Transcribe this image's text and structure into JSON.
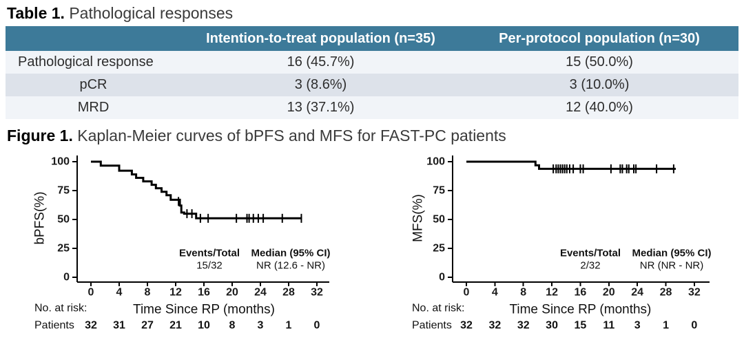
{
  "page": {
    "background": "#ffffff"
  },
  "table": {
    "title_prefix": "Table 1.",
    "title_text": " Pathological responses",
    "header": {
      "col_itt": "Intention-to-treat population (n=35)",
      "col_pp": "Per-protocol population (n=30)",
      "bg_color": "#3D7A99",
      "text_color": "#FFFFFF"
    },
    "row_bg": "#F1F4F8",
    "row_alt_bg": "#DDE2EA",
    "rows": [
      {
        "label": "Pathological response",
        "itt": "16 (45.7%)",
        "pp": "15 (50.0%)"
      },
      {
        "label": "pCR",
        "itt": "3 (8.6%)",
        "pp": "3 (10.0%)"
      },
      {
        "label": "MRD",
        "itt": "13 (37.1%)",
        "pp": "12 (40.0%)"
      }
    ]
  },
  "figure": {
    "title_prefix": "Figure 1.",
    "title_text": " Kaplan-Meier curves of bPFS and MFS for FAST-PC patients"
  },
  "chart_data": [
    {
      "type": "line",
      "subtype": "kaplan_meier_step",
      "ylabel": "bPFS(%)",
      "xlabel": "Time Since RP (months)",
      "x_ticks": [
        0,
        4,
        8,
        12,
        16,
        20,
        24,
        28,
        32
      ],
      "y_ticks": [
        0,
        25,
        50,
        75,
        100
      ],
      "xlim": [
        0,
        32
      ],
      "ylim": [
        0,
        100
      ],
      "line_color": "#000000",
      "annotation": {
        "events_label": "Events/Total",
        "events_value": "15/32",
        "median_label": "Median (95% CI)",
        "median_value": "NR (12.6 - NR)"
      },
      "risk_table": {
        "heading": "No. at risk:",
        "row_label": "Patients",
        "values": [
          32,
          31,
          27,
          21,
          10,
          8,
          3,
          1,
          0
        ]
      },
      "curve": [
        [
          0,
          100
        ],
        [
          1.4,
          100
        ],
        [
          1.4,
          96.6
        ],
        [
          4,
          96.6
        ],
        [
          4,
          92.2
        ],
        [
          5.8,
          92.2
        ],
        [
          5.8,
          89
        ],
        [
          6.4,
          89
        ],
        [
          6.4,
          86
        ],
        [
          7.4,
          86
        ],
        [
          7.4,
          83
        ],
        [
          8.6,
          83
        ],
        [
          8.6,
          80
        ],
        [
          9.2,
          80
        ],
        [
          9.2,
          77
        ],
        [
          10,
          77
        ],
        [
          10,
          74
        ],
        [
          10.7,
          74
        ],
        [
          10.7,
          71
        ],
        [
          11.3,
          71
        ],
        [
          11.3,
          67
        ],
        [
          12.6,
          67
        ],
        [
          12.6,
          62
        ],
        [
          12.8,
          62
        ],
        [
          12.8,
          56
        ],
        [
          13.2,
          56
        ],
        [
          13.2,
          55
        ],
        [
          14.9,
          55
        ],
        [
          14.9,
          51
        ],
        [
          29.9,
          51
        ]
      ],
      "censors": [
        [
          12.4,
          65.6
        ],
        [
          13.6,
          55
        ],
        [
          14.3,
          55
        ],
        [
          15.5,
          51
        ],
        [
          16.6,
          51
        ],
        [
          20.6,
          51
        ],
        [
          22.1,
          51
        ],
        [
          22.4,
          51
        ],
        [
          23.0,
          51
        ],
        [
          23.7,
          51
        ],
        [
          24.4,
          51
        ],
        [
          27.1,
          51
        ],
        [
          29.8,
          51
        ]
      ]
    },
    {
      "type": "line",
      "subtype": "kaplan_meier_step",
      "ylabel": "MFS(%)",
      "xlabel": "Time Since RP (months)",
      "x_ticks": [
        0,
        4,
        8,
        12,
        16,
        20,
        24,
        28,
        32
      ],
      "y_ticks": [
        0,
        25,
        50,
        75,
        100
      ],
      "xlim": [
        0,
        32
      ],
      "ylim": [
        0,
        100
      ],
      "line_color": "#000000",
      "annotation": {
        "events_label": "Events/Total",
        "events_value": "2/32",
        "median_label": "Median (95% CI)",
        "median_value": "NR (NR - NR)"
      },
      "risk_table": {
        "heading": "No. at risk:",
        "row_label": "Patients",
        "values": [
          32,
          32,
          32,
          30,
          15,
          11,
          3,
          1,
          0
        ]
      },
      "curve": [
        [
          0,
          100
        ],
        [
          9.7,
          100
        ],
        [
          9.7,
          96.9
        ],
        [
          10.2,
          96.9
        ],
        [
          10.2,
          93.8
        ],
        [
          29.4,
          93.8
        ]
      ],
      "censors": [
        [
          12.2,
          93.8
        ],
        [
          12.6,
          93.8
        ],
        [
          12.9,
          93.8
        ],
        [
          13.2,
          93.8
        ],
        [
          13.5,
          93.8
        ],
        [
          13.8,
          93.8
        ],
        [
          14.1,
          93.8
        ],
        [
          14.5,
          93.8
        ],
        [
          15.0,
          93.8
        ],
        [
          16.0,
          93.8
        ],
        [
          16.4,
          93.8
        ],
        [
          20.3,
          93.8
        ],
        [
          21.6,
          93.8
        ],
        [
          21.9,
          93.8
        ],
        [
          22.5,
          93.8
        ],
        [
          22.8,
          93.8
        ],
        [
          23.5,
          93.8
        ],
        [
          23.8,
          93.8
        ],
        [
          26.7,
          93.8
        ],
        [
          29.1,
          93.8
        ]
      ]
    }
  ]
}
